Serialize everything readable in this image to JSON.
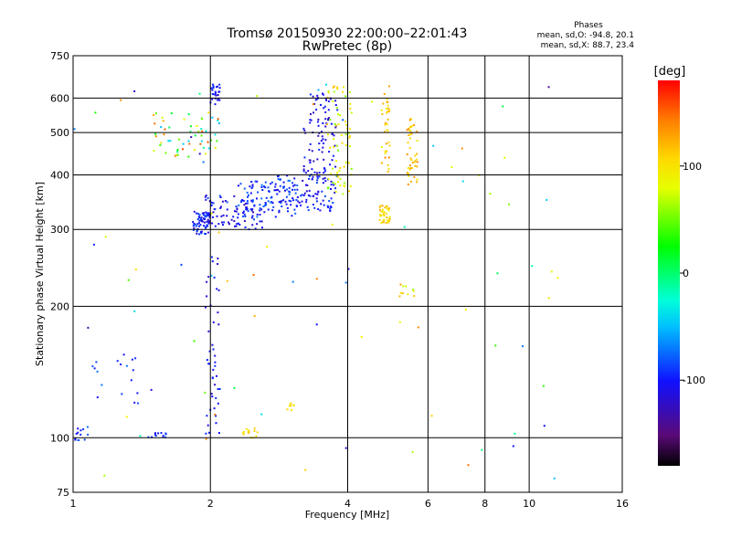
{
  "chart_data": {
    "type": "scatter",
    "title": "Tromsø 20150930 22:00:00–22:01:43",
    "subtitle": "RwPretec (8p)",
    "xlabel": "Frequency [MHz]",
    "ylabel": "Stationary phase Virtual Height [km]",
    "x_scale": "log",
    "y_scale": "log",
    "xlim": [
      1,
      16
    ],
    "ylim": [
      75,
      750
    ],
    "x_ticks": [
      "1",
      "2",
      "4",
      "6",
      "8",
      "10",
      "16"
    ],
    "x_tick_values": [
      1,
      2,
      4,
      6,
      8,
      10,
      16
    ],
    "y_ticks": [
      "75",
      "100",
      "200",
      "300",
      "400",
      "500",
      "600",
      "750"
    ],
    "y_tick_values": [
      75,
      100,
      200,
      300,
      400,
      500,
      600,
      750
    ],
    "grid": true,
    "phases_box": {
      "heading": "Phases",
      "line1": "mean, sd,O: -94.8, 20.1",
      "line2": "mean, sd,X:  88.7, 23.4"
    },
    "colorbar": {
      "label": "[deg]",
      "ticks": [
        "100",
        "0",
        "-100"
      ],
      "tick_values": [
        100,
        0,
        -100
      ],
      "range": [
        -180,
        180
      ],
      "colormap": "rainbow"
    },
    "clusters": [
      {
        "f": [
          1.83,
          2.0
        ],
        "h": [
          292,
          330
        ],
        "phase": [
          -120,
          -80
        ],
        "n": 70
      },
      {
        "f": [
          1.95,
          2.6
        ],
        "h": [
          300,
          360
        ],
        "phase": [
          -130,
          -80
        ],
        "n": 90
      },
      {
        "f": [
          2.3,
          3.1
        ],
        "h": [
          320,
          390
        ],
        "phase": [
          -110,
          -70
        ],
        "n": 90
      },
      {
        "f": [
          2.8,
          3.8
        ],
        "h": [
          330,
          400
        ],
        "phase": [
          -120,
          -80
        ],
        "n": 100
      },
      {
        "f": [
          3.2,
          3.8
        ],
        "h": [
          400,
          620
        ],
        "phase": [
          -130,
          -90
        ],
        "n": 90
      },
      {
        "f": [
          3.6,
          4.1
        ],
        "h": [
          360,
          650
        ],
        "phase": [
          50,
          120
        ],
        "n": 70
      },
      {
        "f": [
          4.7,
          4.95
        ],
        "h": [
          310,
          340
        ],
        "phase": [
          90,
          130
        ],
        "n": 40
      },
      {
        "f": [
          4.75,
          4.95
        ],
        "h": [
          400,
          640
        ],
        "phase": [
          80,
          140
        ],
        "n": 35
      },
      {
        "f": [
          5.4,
          5.7
        ],
        "h": [
          380,
          540
        ],
        "phase": [
          90,
          140
        ],
        "n": 45
      },
      {
        "f": [
          1.5,
          2.1
        ],
        "h": [
          440,
          560
        ],
        "phase": [
          -60,
          160
        ],
        "n": 60
      },
      {
        "f": [
          2.0,
          2.1
        ],
        "h": [
          580,
          650
        ],
        "phase": [
          -120,
          -90
        ],
        "n": 25
      },
      {
        "f": [
          1.95,
          2.1
        ],
        "h": [
          100,
          260
        ],
        "phase": [
          -120,
          -90
        ],
        "n": 45
      },
      {
        "f": [
          1.0,
          1.1
        ],
        "h": [
          98,
          106
        ],
        "phase": [
          -110,
          -70
        ],
        "n": 15
      },
      {
        "f": [
          1.45,
          1.6
        ],
        "h": [
          100,
          103
        ],
        "phase": [
          -110,
          -80
        ],
        "n": 12
      },
      {
        "f": [
          2.35,
          2.55
        ],
        "h": [
          100,
          105
        ],
        "phase": [
          90,
          120
        ],
        "n": 14
      },
      {
        "f": [
          2.95,
          3.05
        ],
        "h": [
          115,
          120
        ],
        "phase": [
          90,
          120
        ],
        "n": 8
      },
      {
        "f": [
          5.2,
          5.6
        ],
        "h": [
          210,
          225
        ],
        "phase": [
          60,
          140
        ],
        "n": 10
      },
      {
        "f": [
          1.1,
          1.4
        ],
        "h": [
          115,
          155
        ],
        "phase": [
          -110,
          -70
        ],
        "n": 18
      },
      {
        "f": [
          1.0,
          12.0
        ],
        "h": [
          80,
          650
        ],
        "phase": [
          -140,
          150
        ],
        "n": 80
      }
    ]
  }
}
